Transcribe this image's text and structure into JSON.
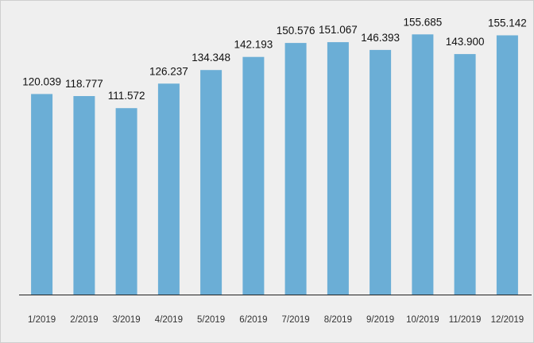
{
  "chart_data": {
    "type": "bar",
    "title": "",
    "xlabel": "",
    "ylabel": "",
    "categories": [
      "1/2019",
      "2/2019",
      "3/2019",
      "4/2019",
      "5/2019",
      "6/2019",
      "7/2019",
      "8/2019",
      "9/2019",
      "10/2019",
      "11/2019",
      "12/2019"
    ],
    "values": [
      120.039,
      118.777,
      111.572,
      126.237,
      134.348,
      142.193,
      150.576,
      151.067,
      146.393,
      155.685,
      143.9,
      155.142
    ],
    "value_labels": [
      "120.039",
      "118.777",
      "111.572",
      "126.237",
      "134.348",
      "142.193",
      "150.576",
      "151.067",
      "146.393",
      "155.685",
      "143.900",
      "155.142"
    ],
    "ylim": [
      0,
      172
    ],
    "grid": false,
    "legend": "none",
    "colors": {
      "bar": "#6baed6",
      "background": "#efefef",
      "axis": "#222222"
    }
  }
}
